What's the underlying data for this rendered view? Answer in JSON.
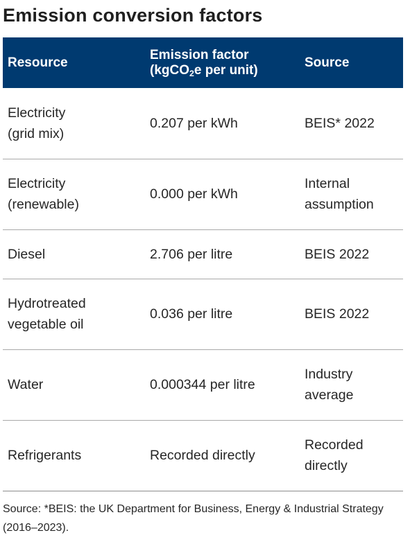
{
  "title": "Emission conversion factors",
  "table": {
    "headers": {
      "resource": "Resource",
      "factor_line1": "Emission factor",
      "factor_prefix": "(kgCO",
      "factor_sub": "2",
      "factor_suffix": "e per unit)",
      "source": "Source"
    },
    "rows": [
      {
        "resource": "Electricity\n(grid mix)",
        "factor": "0.207 per kWh",
        "source": "BEIS* 2022"
      },
      {
        "resource": "Electricity\n(renewable)",
        "factor": "0.000 per kWh",
        "source": "Internal\nassumption"
      },
      {
        "resource": "Diesel",
        "factor": "2.706 per litre",
        "source": "BEIS 2022"
      },
      {
        "resource": "Hydrotreated\nvegetable oil",
        "factor": "0.036 per litre",
        "source": "BEIS 2022"
      },
      {
        "resource": "Water",
        "factor": "0.000344 per litre",
        "source": "Industry\naverage"
      },
      {
        "resource": "Refrigerants",
        "factor": "Recorded directly",
        "source": "Recorded\ndirectly"
      }
    ]
  },
  "footnote": "Source: *BEIS: the UK Department for Business, Energy & Industrial Strategy (2016–2023).",
  "colors": {
    "header_background": "#003a70",
    "header_text": "#ffffff",
    "row_divider": "#a9a9a9"
  }
}
